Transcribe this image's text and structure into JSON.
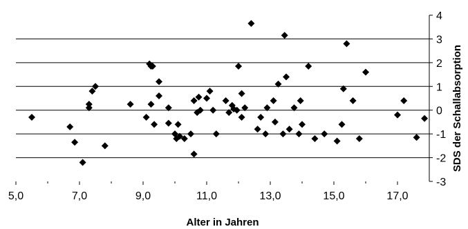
{
  "chart_data": {
    "type": "scatter",
    "title": "",
    "xlabel": "Alter in Jahren",
    "ylabel": "SDS der Schallabsorption",
    "xlim": [
      5,
      18
    ],
    "ylim": [
      -3,
      4
    ],
    "x_ticks": [
      5,
      7,
      9,
      11,
      13,
      15,
      17
    ],
    "x_tick_labels": [
      "5,0",
      "7,0",
      "9,0",
      "11,0",
      "13,0",
      "15,0",
      "17,0"
    ],
    "y_ticks": [
      -3,
      -2,
      -1,
      0,
      1,
      2,
      3,
      4
    ],
    "y_tick_labels": [
      "-3",
      "-2",
      "-1",
      "0",
      "1",
      "2",
      "3",
      "4"
    ],
    "y_axis_side": "right",
    "horizontal_gridlines": true,
    "gridline_values": [
      -2,
      -1,
      1,
      2,
      3
    ],
    "marker": "diamond",
    "marker_color": "#000000",
    "points": [
      [
        5.5,
        -0.3
      ],
      [
        6.7,
        -0.7
      ],
      [
        6.85,
        -1.35
      ],
      [
        7.1,
        -2.2
      ],
      [
        7.3,
        0.25
      ],
      [
        7.3,
        0.1
      ],
      [
        7.4,
        0.8
      ],
      [
        7.5,
        1.0
      ],
      [
        7.8,
        -1.5
      ],
      [
        8.6,
        0.25
      ],
      [
        9.1,
        -0.3
      ],
      [
        9.2,
        1.95
      ],
      [
        9.25,
        1.85
      ],
      [
        9.25,
        0.25
      ],
      [
        9.3,
        1.85
      ],
      [
        9.35,
        -0.6
      ],
      [
        9.5,
        1.2
      ],
      [
        9.5,
        0.6
      ],
      [
        9.8,
        0.1
      ],
      [
        9.8,
        -0.55
      ],
      [
        10.0,
        -1.0
      ],
      [
        10.05,
        -1.2
      ],
      [
        10.1,
        -0.6
      ],
      [
        10.15,
        -1.1
      ],
      [
        10.3,
        -1.2
      ],
      [
        10.5,
        -1.0
      ],
      [
        10.6,
        -1.85
      ],
      [
        10.6,
        0.4
      ],
      [
        10.7,
        -0.1
      ],
      [
        10.75,
        0.55
      ],
      [
        10.8,
        0.0
      ],
      [
        11.0,
        0.5
      ],
      [
        11.1,
        0.8
      ],
      [
        11.2,
        0.0
      ],
      [
        11.3,
        -1.0
      ],
      [
        11.6,
        0.4
      ],
      [
        11.7,
        -0.1
      ],
      [
        11.8,
        0.2
      ],
      [
        11.85,
        0.05
      ],
      [
        11.95,
        0.0
      ],
      [
        12.0,
        1.85
      ],
      [
        12.1,
        -0.3
      ],
      [
        12.1,
        0.7
      ],
      [
        12.2,
        0.1
      ],
      [
        12.4,
        3.65
      ],
      [
        12.6,
        -0.8
      ],
      [
        12.7,
        -0.3
      ],
      [
        12.85,
        -1.0
      ],
      [
        12.9,
        0.1
      ],
      [
        13.1,
        0.4
      ],
      [
        13.15,
        -0.5
      ],
      [
        13.25,
        1.1
      ],
      [
        13.4,
        -1.0
      ],
      [
        13.45,
        3.15
      ],
      [
        13.5,
        1.4
      ],
      [
        13.6,
        -0.8
      ],
      [
        13.75,
        0.1
      ],
      [
        13.9,
        -1.0
      ],
      [
        13.95,
        0.4
      ],
      [
        14.0,
        -0.6
      ],
      [
        14.2,
        1.85
      ],
      [
        14.4,
        -1.2
      ],
      [
        14.7,
        -1.0
      ],
      [
        15.1,
        -1.3
      ],
      [
        15.25,
        -0.6
      ],
      [
        15.3,
        0.9
      ],
      [
        15.4,
        2.8
      ],
      [
        15.6,
        0.4
      ],
      [
        15.8,
        -1.2
      ],
      [
        16.0,
        1.6
      ],
      [
        17.0,
        -0.2
      ],
      [
        17.2,
        0.4
      ],
      [
        17.6,
        -1.15
      ],
      [
        17.85,
        -0.35
      ]
    ]
  }
}
